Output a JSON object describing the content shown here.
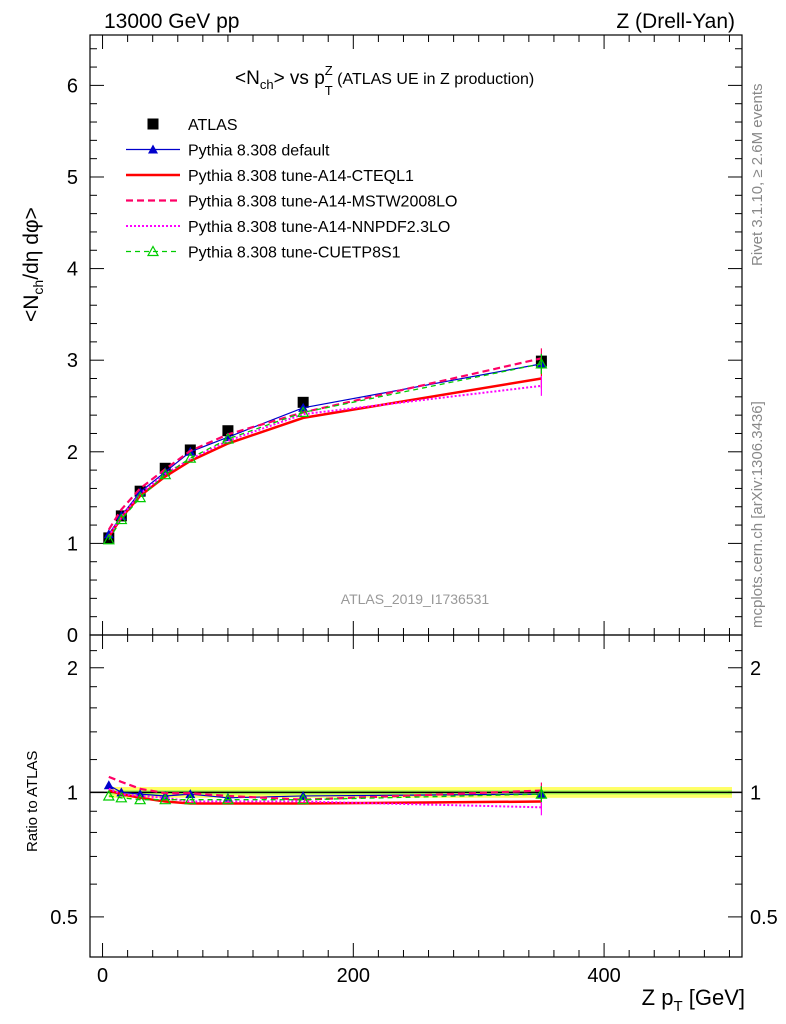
{
  "header": {
    "left": "13000 GeV pp",
    "right": "Z (Drell-Yan)"
  },
  "side": {
    "top": "Rivet 3.1.10, ≥ 2.6M events",
    "bottom": "mcplots.cern.ch [arXiv:1306.3436]"
  },
  "watermark": "ATLAS_2019_I1736531",
  "chart_data": [
    {
      "type": "line",
      "title": "<Nch> vs pTZ (ATLAS UE in Z production)",
      "title_parts": {
        "pre": "<N",
        "sub1": "ch",
        "mid": "> vs p",
        "sub2": "T",
        "sup": "Z",
        "post": " (ATLAS UE in Z production)"
      },
      "ylabel": "<Nch/dη dφ>",
      "ylabel_parts": {
        "pre": "<N",
        "sub": "ch",
        "post": "/dη dφ>"
      },
      "xlim": [
        -10,
        510
      ],
      "ylim": [
        0,
        6.55
      ],
      "yticks": [
        "0",
        "1",
        "2",
        "3",
        "4",
        "5",
        "6"
      ],
      "grid": false,
      "legend_position": "top-left",
      "x": [
        5,
        15,
        30,
        50,
        70,
        100,
        160,
        350
      ],
      "series": [
        {
          "name": "ATLAS",
          "color": "#000000",
          "style": "data",
          "marker": "square",
          "values": [
            1.06,
            1.3,
            1.57,
            1.82,
            2.02,
            2.23,
            2.54,
            2.99
          ]
        },
        {
          "name": "Pythia 8.308 default",
          "color": "#0000cc",
          "style": "solid-thin",
          "marker": "triangle-filled",
          "values": [
            1.1,
            1.3,
            1.56,
            1.78,
            2.0,
            2.16,
            2.48,
            2.96
          ]
        },
        {
          "name": "Pythia 8.308 tune-A14-CTEQL1",
          "color": "#ff0000",
          "style": "solid-thick",
          "marker": "none",
          "values": [
            1.07,
            1.28,
            1.52,
            1.73,
            1.9,
            2.09,
            2.37,
            2.8
          ]
        },
        {
          "name": "Pythia 8.308 tune-A14-MSTW2008LO",
          "color": "#ff0066",
          "style": "dashed",
          "marker": "none",
          "values": [
            1.15,
            1.37,
            1.6,
            1.81,
            2.01,
            2.19,
            2.43,
            3.02
          ]
        },
        {
          "name": "Pythia 8.308 tune-A14-NNPDF2.3LO",
          "color": "#ff00ff",
          "style": "dotted",
          "marker": "none",
          "values": [
            1.08,
            1.29,
            1.54,
            1.76,
            1.92,
            2.12,
            2.41,
            2.72
          ]
        },
        {
          "name": "Pythia 8.308 tune-CUETP8S1",
          "color": "#00cc00",
          "style": "dashed-thin",
          "marker": "triangle-open",
          "values": [
            1.04,
            1.26,
            1.5,
            1.75,
            1.93,
            2.14,
            2.43,
            2.96
          ]
        }
      ]
    },
    {
      "type": "line",
      "ylabel": "Ratio to ATLAS",
      "xlabel": "Z pT [GeV]",
      "xlabel_parts": {
        "pre": "Z p",
        "sub": "T",
        "post": " [GeV]"
      },
      "xlim": [
        -10,
        510
      ],
      "xticks": [
        "0",
        "200",
        "400"
      ],
      "ylim": [
        0.4,
        2.4
      ],
      "ytick_labels": [
        "0.5",
        "1",
        "2"
      ],
      "ytick_values": [
        0.5,
        1,
        2
      ],
      "log_y": true,
      "grid": false,
      "band": {
        "color": "#ffff66",
        "inner_color": "#aaff55",
        "values": [
          0.97,
          1.03
        ]
      },
      "x": [
        5,
        15,
        30,
        50,
        70,
        100,
        160,
        350
      ],
      "series": [
        {
          "name": "Pythia 8.308 default",
          "color": "#0000cc",
          "style": "solid-thin",
          "marker": "triangle-filled",
          "values": [
            1.04,
            1.0,
            0.99,
            0.98,
            0.99,
            0.97,
            0.98,
            0.99
          ]
        },
        {
          "name": "Pythia 8.308 tune-A14-CTEQL1",
          "color": "#ff0000",
          "style": "solid-thick",
          "marker": "none",
          "values": [
            1.01,
            0.99,
            0.97,
            0.95,
            0.94,
            0.94,
            0.94,
            0.95
          ]
        },
        {
          "name": "Pythia 8.308 tune-A14-MSTW2008LO",
          "color": "#ff0066",
          "style": "dashed",
          "marker": "none",
          "values": [
            1.09,
            1.06,
            1.02,
            0.995,
            0.995,
            0.98,
            0.96,
            1.01
          ]
        },
        {
          "name": "Pythia 8.308 tune-A14-NNPDF2.3LO",
          "color": "#ff00ff",
          "style": "dotted",
          "marker": "none",
          "values": [
            1.02,
            0.99,
            0.98,
            0.97,
            0.95,
            0.95,
            0.95,
            0.92
          ]
        },
        {
          "name": "Pythia 8.308 tune-CUETP8S1",
          "color": "#00cc00",
          "style": "dashed-thin",
          "marker": "triangle-open",
          "values": [
            0.98,
            0.97,
            0.96,
            0.96,
            0.96,
            0.96,
            0.96,
            0.99
          ]
        }
      ]
    }
  ]
}
